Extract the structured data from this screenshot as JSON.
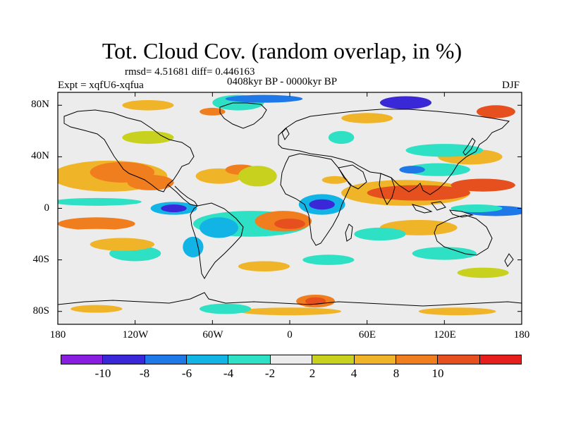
{
  "title": "Tot. Cloud Cov. (random overlap, in %)",
  "stats": "rmsd= 4.51681 diff= 0.446163",
  "experiment": "Expt = xqfU6-xqfua",
  "period": "0408kyr BP - 0000kyr BP",
  "season": "DJF",
  "map": {
    "lat_labels": [
      "80N",
      "40N",
      "0",
      "40S",
      "80S"
    ],
    "lon_labels": [
      "180",
      "120W",
      "60W",
      "0",
      "60E",
      "120E",
      "180"
    ],
    "projection": "cylindrical equidistant",
    "background_color": "#ececec"
  },
  "colorbar": {
    "colors": [
      "#8a1ee0",
      "#3a28d8",
      "#1e78e8",
      "#12b4e6",
      "#2ee0c4",
      "#ececec",
      "#c8d21e",
      "#f0b428",
      "#f07d1e",
      "#e6501e",
      "#e61e1e"
    ],
    "labels": [
      "-10",
      "-8",
      "-6",
      "-4",
      "-2",
      "2",
      "4",
      "8",
      "10"
    ]
  },
  "chart_data": {
    "type": "heatmap",
    "title": "Tot. Cloud Cov. (random overlap, in %)",
    "subtitle": "0408kyr BP - 0000kyr BP",
    "xlim": [
      -180,
      180
    ],
    "ylim": [
      -90,
      90
    ],
    "levels": [
      -10,
      -8,
      -6,
      -4,
      -2,
      2,
      4,
      8,
      10
    ],
    "anomaly_regions": [
      {
        "lon": 35,
        "lat": 22,
        "rx": 10,
        "ry": 3,
        "value": 4
      },
      {
        "lon": -140,
        "lat": 25,
        "rx": 45,
        "ry": 12,
        "value": 4
      },
      {
        "lon": -130,
        "lat": 28,
        "rx": 25,
        "ry": 8,
        "value": 8
      },
      {
        "lon": -108,
        "lat": 20,
        "rx": 18,
        "ry": 6,
        "value": 8
      },
      {
        "lon": -55,
        "lat": 25,
        "rx": 18,
        "ry": 6,
        "value": 4
      },
      {
        "lon": -38,
        "lat": 30,
        "rx": 12,
        "ry": 4,
        "value": 8
      },
      {
        "lon": -25,
        "lat": 25,
        "rx": 15,
        "ry": 8,
        "value": 2
      },
      {
        "lon": -150,
        "lat": 5,
        "rx": 35,
        "ry": 3,
        "value": -4
      },
      {
        "lon": -90,
        "lat": 0,
        "rx": 18,
        "ry": 5,
        "value": -6
      },
      {
        "lon": -90,
        "lat": 0,
        "rx": 10,
        "ry": 3,
        "value": -10
      },
      {
        "lon": -30,
        "lat": -12,
        "rx": 45,
        "ry": 10,
        "value": -4
      },
      {
        "lon": -55,
        "lat": -15,
        "rx": 15,
        "ry": 8,
        "value": -6
      },
      {
        "lon": -5,
        "lat": -10,
        "rx": 22,
        "ry": 8,
        "value": 8
      },
      {
        "lon": 0,
        "lat": -12,
        "rx": 12,
        "ry": 4,
        "value": 10
      },
      {
        "lon": 25,
        "lat": 3,
        "rx": 18,
        "ry": 8,
        "value": -6
      },
      {
        "lon": 25,
        "lat": 3,
        "rx": 10,
        "ry": 4,
        "value": -10
      },
      {
        "lon": 90,
        "lat": 12,
        "rx": 50,
        "ry": 10,
        "value": 4
      },
      {
        "lon": 100,
        "lat": 12,
        "rx": 40,
        "ry": 6,
        "value": 10
      },
      {
        "lon": 150,
        "lat": 18,
        "rx": 25,
        "ry": 5,
        "value": 10
      },
      {
        "lon": 115,
        "lat": 30,
        "rx": 25,
        "ry": 5,
        "value": -4
      },
      {
        "lon": 95,
        "lat": 30,
        "rx": 10,
        "ry": 3,
        "value": -8
      },
      {
        "lon": 160,
        "lat": -2,
        "rx": 25,
        "ry": 4,
        "value": -8
      },
      {
        "lon": 145,
        "lat": 0,
        "rx": 20,
        "ry": 3,
        "value": -4
      },
      {
        "lon": 100,
        "lat": -15,
        "rx": 30,
        "ry": 6,
        "value": 4
      },
      {
        "lon": 70,
        "lat": -20,
        "rx": 20,
        "ry": 5,
        "value": -4
      },
      {
        "lon": -150,
        "lat": -12,
        "rx": 30,
        "ry": 5,
        "value": 8
      },
      {
        "lon": -150,
        "lat": -20,
        "rx": 30,
        "ry": 4,
        "value": -2
      },
      {
        "lon": -120,
        "lat": -35,
        "rx": 20,
        "ry": 6,
        "value": -4
      },
      {
        "lon": -130,
        "lat": -28,
        "rx": 25,
        "ry": 5,
        "value": 4
      },
      {
        "lon": -75,
        "lat": -30,
        "rx": 8,
        "ry": 8,
        "value": -6
      },
      {
        "lon": -20,
        "lat": -45,
        "rx": 20,
        "ry": 4,
        "value": 4
      },
      {
        "lon": 30,
        "lat": -40,
        "rx": 20,
        "ry": 4,
        "value": -4
      },
      {
        "lon": 120,
        "lat": -35,
        "rx": 25,
        "ry": 5,
        "value": -4
      },
      {
        "lon": 150,
        "lat": -50,
        "rx": 20,
        "ry": 4,
        "value": 2
      },
      {
        "lon": 40,
        "lat": 55,
        "rx": 10,
        "ry": 5,
        "value": -4
      },
      {
        "lon": 140,
        "lat": 40,
        "rx": 25,
        "ry": 6,
        "value": 4
      },
      {
        "lon": 120,
        "lat": 45,
        "rx": 30,
        "ry": 5,
        "value": -4
      },
      {
        "lon": 90,
        "lat": 82,
        "rx": 20,
        "ry": 5,
        "value": -10
      },
      {
        "lon": 160,
        "lat": 75,
        "rx": 15,
        "ry": 5,
        "value": 10
      },
      {
        "lon": -40,
        "lat": 82,
        "rx": 20,
        "ry": 6,
        "value": -4
      },
      {
        "lon": -20,
        "lat": 85,
        "rx": 30,
        "ry": 3,
        "value": -8
      },
      {
        "lon": -60,
        "lat": 75,
        "rx": 10,
        "ry": 3,
        "value": 8
      },
      {
        "lon": -110,
        "lat": 80,
        "rx": 20,
        "ry": 4,
        "value": 4
      },
      {
        "lon": 60,
        "lat": 70,
        "rx": 20,
        "ry": 4,
        "value": 4
      },
      {
        "lon": -110,
        "lat": 55,
        "rx": 20,
        "ry": 5,
        "value": 2
      },
      {
        "lon": 20,
        "lat": -72,
        "rx": 15,
        "ry": 5,
        "value": 8
      },
      {
        "lon": 20,
        "lat": -72,
        "rx": 8,
        "ry": 3,
        "value": 10
      },
      {
        "lon": 0,
        "lat": -80,
        "rx": 40,
        "ry": 3,
        "value": 4
      },
      {
        "lon": -150,
        "lat": -78,
        "rx": 20,
        "ry": 3,
        "value": 4
      },
      {
        "lon": 130,
        "lat": -80,
        "rx": 30,
        "ry": 3,
        "value": 4
      },
      {
        "lon": -50,
        "lat": -78,
        "rx": 20,
        "ry": 4,
        "value": -4
      }
    ]
  }
}
